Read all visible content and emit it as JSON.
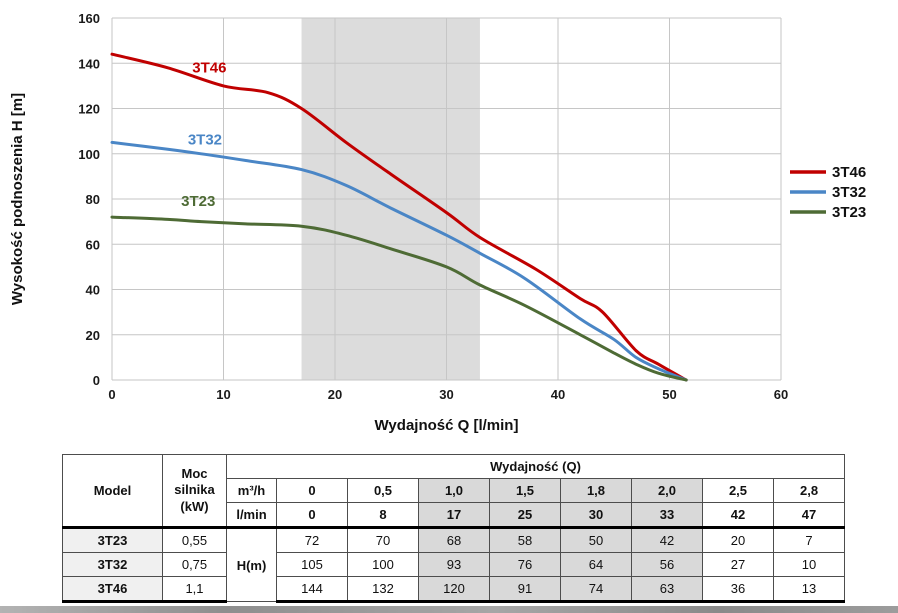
{
  "page": {
    "background": "#ffffff"
  },
  "chart_data": {
    "type": "line",
    "title": "",
    "xlabel": "Wydajność Q [l/min]",
    "ylabel": "Wysokość podnoszenia H [m]",
    "xlim": [
      0,
      60
    ],
    "ylim": [
      0,
      160
    ],
    "x_ticks": [
      0,
      10,
      20,
      30,
      40,
      50,
      60
    ],
    "y_ticks": [
      0,
      20,
      40,
      60,
      80,
      100,
      120,
      140,
      160
    ],
    "grid": true,
    "legend_position": "right-outside",
    "recommended_range_band": {
      "x_from": 17,
      "x_to": 33,
      "color": "#d8d8d8"
    },
    "legend": [
      "3T46",
      "3T32",
      "3T23"
    ],
    "series": [
      {
        "name": "3T46",
        "color": "#c00000",
        "label": "3T46",
        "label_pos": [
          7.2,
          136
        ],
        "x_lmin": [
          0,
          8,
          17,
          25,
          30,
          33,
          42,
          47
        ],
        "h_m": [
          144,
          132,
          120,
          91,
          74,
          63,
          36,
          13
        ],
        "curve_points": [
          [
            0,
            144
          ],
          [
            5,
            138
          ],
          [
            10,
            130
          ],
          [
            14,
            127
          ],
          [
            17,
            120
          ],
          [
            21,
            105
          ],
          [
            25,
            91
          ],
          [
            30,
            74
          ],
          [
            33,
            63
          ],
          [
            38,
            49
          ],
          [
            42,
            36
          ],
          [
            44,
            30
          ],
          [
            47,
            13
          ],
          [
            49,
            7
          ],
          [
            51.5,
            0
          ]
        ]
      },
      {
        "name": "3T32",
        "color": "#4a86c6",
        "label": "3T32",
        "label_pos": [
          6.8,
          104
        ],
        "x_lmin": [
          0,
          8,
          17,
          25,
          30,
          33,
          42,
          47
        ],
        "h_m": [
          105,
          100,
          93,
          76,
          64,
          56,
          27,
          10
        ],
        "curve_points": [
          [
            0,
            105
          ],
          [
            5,
            102
          ],
          [
            8,
            100
          ],
          [
            12,
            97
          ],
          [
            17,
            93
          ],
          [
            21,
            86
          ],
          [
            25,
            76
          ],
          [
            30,
            64
          ],
          [
            33,
            56
          ],
          [
            37,
            45
          ],
          [
            42,
            27
          ],
          [
            45,
            18
          ],
          [
            47,
            10
          ],
          [
            49,
            5
          ],
          [
            51.5,
            0
          ]
        ]
      },
      {
        "name": "3T23",
        "color": "#4e6b35",
        "label": "3T23",
        "label_pos": [
          6.2,
          77
        ],
        "x_lmin": [
          0,
          8,
          17,
          25,
          30,
          33,
          42,
          47
        ],
        "h_m": [
          72,
          70,
          68,
          58,
          50,
          42,
          20,
          7
        ],
        "curve_points": [
          [
            0,
            72
          ],
          [
            5,
            71
          ],
          [
            8,
            70
          ],
          [
            12,
            69
          ],
          [
            17,
            68
          ],
          [
            21,
            64
          ],
          [
            25,
            58
          ],
          [
            30,
            50
          ],
          [
            33,
            42
          ],
          [
            37,
            33
          ],
          [
            42,
            20
          ],
          [
            45,
            12
          ],
          [
            47,
            7
          ],
          [
            49,
            3
          ],
          [
            51.5,
            0
          ]
        ]
      }
    ]
  },
  "table": {
    "header": {
      "model": "Model",
      "power": "Moc silnika (kW)",
      "capacity": "Wydajność (Q)",
      "unit_m3h": "m³/h",
      "unit_lmin": "l/min",
      "h_label": "H(m)"
    },
    "m3h_values": [
      "0",
      "0,5",
      "1,0",
      "1,5",
      "1,8",
      "2,0",
      "2,5",
      "2,8"
    ],
    "lmin_values": [
      "0",
      "8",
      "17",
      "25",
      "30",
      "33",
      "42",
      "47"
    ],
    "shaded_columns": [
      2,
      3,
      4,
      5
    ],
    "rows": [
      {
        "model": "3T23",
        "power": "0,55",
        "h": [
          "72",
          "70",
          "68",
          "58",
          "50",
          "42",
          "20",
          "7"
        ]
      },
      {
        "model": "3T32",
        "power": "0,75",
        "h": [
          "105",
          "100",
          "93",
          "76",
          "64",
          "56",
          "27",
          "10"
        ]
      },
      {
        "model": "3T46",
        "power": "1,1",
        "h": [
          "144",
          "132",
          "120",
          "91",
          "74",
          "63",
          "36",
          "13"
        ]
      }
    ]
  }
}
